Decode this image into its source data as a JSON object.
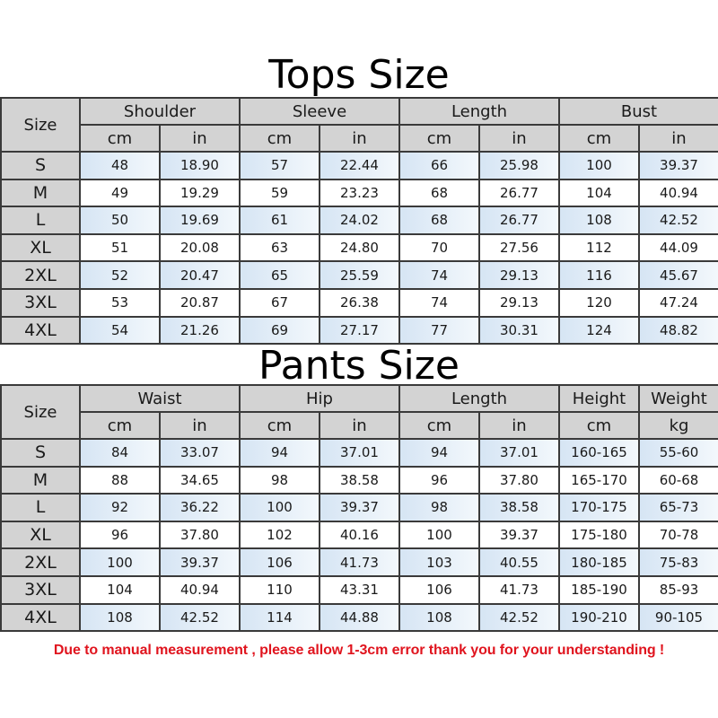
{
  "tops": {
    "title": "Tops Size",
    "size_header": "Size",
    "groups": [
      "Shoulder",
      "Sleeve",
      "Length",
      "Bust"
    ],
    "units": [
      "cm",
      "in",
      "cm",
      "in",
      "cm",
      "in",
      "cm",
      "in"
    ],
    "rows": [
      {
        "size": "S",
        "values": [
          "48",
          "18.90",
          "57",
          "22.44",
          "66",
          "25.98",
          "100",
          "39.37"
        ]
      },
      {
        "size": "M",
        "values": [
          "49",
          "19.29",
          "59",
          "23.23",
          "68",
          "26.77",
          "104",
          "40.94"
        ]
      },
      {
        "size": "L",
        "values": [
          "50",
          "19.69",
          "61",
          "24.02",
          "68",
          "26.77",
          "108",
          "42.52"
        ]
      },
      {
        "size": "XL",
        "values": [
          "51",
          "20.08",
          "63",
          "24.80",
          "70",
          "27.56",
          "112",
          "44.09"
        ]
      },
      {
        "size": "2XL",
        "values": [
          "52",
          "20.47",
          "65",
          "25.59",
          "74",
          "29.13",
          "116",
          "45.67"
        ]
      },
      {
        "size": "3XL",
        "values": [
          "53",
          "20.87",
          "67",
          "26.38",
          "74",
          "29.13",
          "120",
          "47.24"
        ]
      },
      {
        "size": "4XL",
        "values": [
          "54",
          "21.26",
          "69",
          "27.17",
          "77",
          "30.31",
          "124",
          "48.82"
        ]
      }
    ]
  },
  "pants": {
    "title": "Pants Size",
    "size_header": "Size",
    "groups": [
      {
        "label": "Waist",
        "span": 2
      },
      {
        "label": "Hip",
        "span": 2
      },
      {
        "label": "Length",
        "span": 2
      },
      {
        "label": "Height",
        "span": 1
      },
      {
        "label": "Weight",
        "span": 1
      }
    ],
    "units": [
      "cm",
      "in",
      "cm",
      "in",
      "cm",
      "in",
      "cm",
      "kg"
    ],
    "rows": [
      {
        "size": "S",
        "values": [
          "84",
          "33.07",
          "94",
          "37.01",
          "94",
          "37.01",
          "160-165",
          "55-60"
        ]
      },
      {
        "size": "M",
        "values": [
          "88",
          "34.65",
          "98",
          "38.58",
          "96",
          "37.80",
          "165-170",
          "60-68"
        ]
      },
      {
        "size": "L",
        "values": [
          "92",
          "36.22",
          "100",
          "39.37",
          "98",
          "38.58",
          "170-175",
          "65-73"
        ]
      },
      {
        "size": "XL",
        "values": [
          "96",
          "37.80",
          "102",
          "40.16",
          "100",
          "39.37",
          "175-180",
          "70-78"
        ]
      },
      {
        "size": "2XL",
        "values": [
          "100",
          "39.37",
          "106",
          "41.73",
          "103",
          "40.55",
          "180-185",
          "75-83"
        ]
      },
      {
        "size": "3XL",
        "values": [
          "104",
          "40.94",
          "110",
          "43.31",
          "106",
          "41.73",
          "185-190",
          "85-93"
        ]
      },
      {
        "size": "4XL",
        "values": [
          "108",
          "42.52",
          "114",
          "44.88",
          "108",
          "42.52",
          "190-210",
          "90-105"
        ]
      }
    ]
  },
  "footer": "Due to manual measurement , please allow 1-3cm error thank you for your understanding !",
  "colors": {
    "header_gray": "#d3d3d3",
    "row_blue": "#d6e5f4",
    "footer_red": "#e0141e"
  }
}
